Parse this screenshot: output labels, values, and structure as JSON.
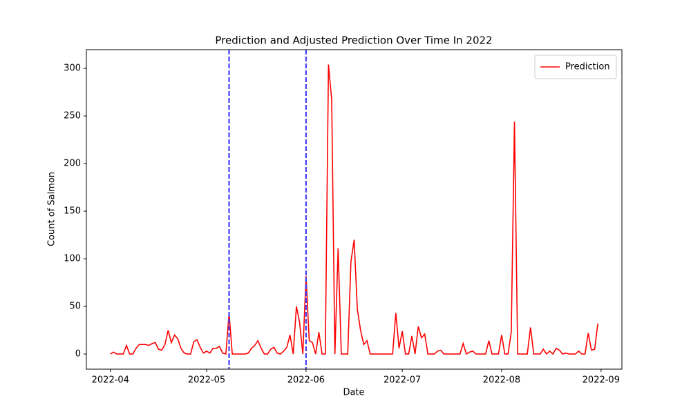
{
  "chart_data": {
    "type": "line",
    "title": "Prediction and Adjusted Prediction Over Time In 2022",
    "x_label": "Date",
    "y_label": "Count of Salmon",
    "series": [
      {
        "name": "Prediction",
        "color": "#ff0000",
        "values": [
          0,
          2,
          0,
          0,
          0,
          9,
          0,
          0,
          6,
          10,
          10,
          10,
          9,
          11,
          12,
          5,
          4,
          10,
          25,
          12,
          20,
          16,
          6,
          1,
          0,
          0,
          13,
          15,
          7,
          1,
          3,
          1,
          6,
          6,
          8,
          1,
          0,
          43,
          0,
          0,
          0,
          0,
          0,
          1,
          6,
          9,
          14,
          6,
          0,
          0,
          5,
          7,
          1,
          0,
          3,
          7,
          20,
          0,
          50,
          33,
          0,
          82,
          14,
          12,
          0,
          23,
          0,
          0,
          304,
          267,
          0,
          111,
          0,
          0,
          0,
          97,
          120,
          47,
          25,
          10,
          14,
          0,
          0,
          0,
          0,
          0,
          0,
          0,
          0,
          43,
          6,
          24,
          0,
          0,
          19,
          0,
          29,
          17,
          21,
          0,
          0,
          0,
          3,
          4,
          0,
          0,
          0,
          0,
          0,
          0,
          11,
          0,
          2,
          3,
          0,
          0,
          0,
          0,
          14,
          0,
          0,
          0,
          20,
          0,
          0,
          23,
          244,
          0,
          0,
          0,
          0,
          28,
          0,
          0,
          0,
          5,
          0,
          3,
          0,
          6,
          4,
          0,
          1,
          0,
          0,
          0,
          3,
          0,
          0,
          22,
          4,
          5,
          32
        ]
      }
    ],
    "xlim": [
      -7.5,
      159.5
    ],
    "xticks": [
      {
        "value": 0,
        "label": "2022-04"
      },
      {
        "value": 30,
        "label": "2022-05"
      },
      {
        "value": 61,
        "label": "2022-06"
      },
      {
        "value": 91,
        "label": "2022-07"
      },
      {
        "value": 122,
        "label": "2022-08"
      },
      {
        "value": 153,
        "label": "2022-09"
      }
    ],
    "ylim": [
      -15.9,
      319.6
    ],
    "yticks": [
      0,
      50,
      100,
      150,
      200,
      250,
      300
    ],
    "vlines": [
      37,
      61
    ],
    "vline_color": "#4040ff",
    "legend": "upper right"
  }
}
